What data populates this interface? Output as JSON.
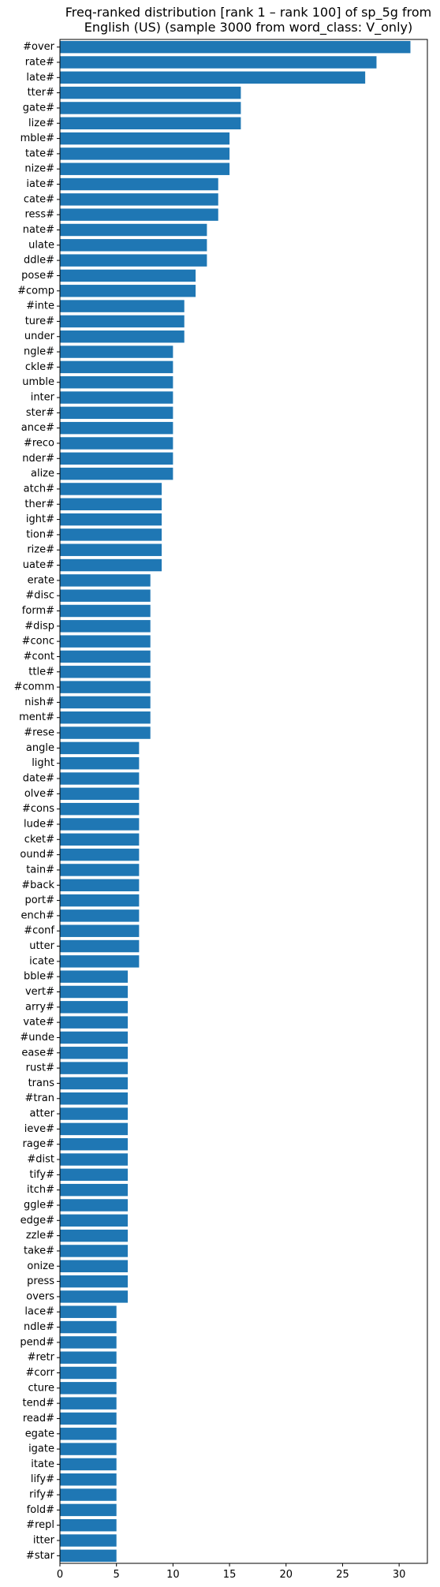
{
  "chart_data": {
    "type": "bar",
    "orientation": "horizontal",
    "title_lines": [
      "Freq-ranked distribution [rank 1 – rank 100] of sp_5g from",
      "English (US) (sample 3000 from word_class: V_only)"
    ],
    "xlabel": "",
    "ylabel": "",
    "xlim": [
      0,
      32.5
    ],
    "x_ticks": [
      0,
      5,
      10,
      15,
      20,
      25,
      30
    ],
    "grid": false,
    "bar_color": "#1f77b4",
    "categories": [
      "#over",
      "rate#",
      "late#",
      "tter#",
      "gate#",
      "lize#",
      "mble#",
      "tate#",
      "nize#",
      "iate#",
      "cate#",
      "ress#",
      "nate#",
      "ulate",
      "ddle#",
      "pose#",
      "#comp",
      "#inte",
      "ture#",
      "under",
      "ngle#",
      "ckle#",
      "umble",
      "inter",
      "ster#",
      "ance#",
      "#reco",
      "nder#",
      "alize",
      "atch#",
      "ther#",
      "ight#",
      "tion#",
      "rize#",
      "uate#",
      "erate",
      "#disc",
      "form#",
      "#disp",
      "#conc",
      "#cont",
      "ttle#",
      "#comm",
      "nish#",
      "ment#",
      "#rese",
      "angle",
      "light",
      "date#",
      "olve#",
      "#cons",
      "lude#",
      "cket#",
      "ound#",
      "tain#",
      "#back",
      "port#",
      "ench#",
      "#conf",
      "utter",
      "icate",
      "bble#",
      "vert#",
      "arry#",
      "vate#",
      "#unde",
      "ease#",
      "rust#",
      "trans",
      "#tran",
      "atter",
      "ieve#",
      "rage#",
      "#dist",
      "tify#",
      "itch#",
      "ggle#",
      "edge#",
      "zzle#",
      "take#",
      "onize",
      "press",
      "overs",
      "lace#",
      "ndle#",
      "pend#",
      "#retr",
      "#corr",
      "cture",
      "tend#",
      "read#",
      "egate",
      "igate",
      "itate",
      "lify#",
      "rify#",
      "fold#",
      "#repl",
      "itter",
      "#star"
    ],
    "values": [
      31,
      28,
      27,
      16,
      16,
      16,
      15,
      15,
      15,
      14,
      14,
      14,
      13,
      13,
      13,
      12,
      12,
      11,
      11,
      11,
      10,
      10,
      10,
      10,
      10,
      10,
      10,
      10,
      10,
      9,
      9,
      9,
      9,
      9,
      9,
      8,
      8,
      8,
      8,
      8,
      8,
      8,
      8,
      8,
      8,
      8,
      7,
      7,
      7,
      7,
      7,
      7,
      7,
      7,
      7,
      7,
      7,
      7,
      7,
      7,
      7,
      6,
      6,
      6,
      6,
      6,
      6,
      6,
      6,
      6,
      6,
      6,
      6,
      6,
      6,
      6,
      6,
      6,
      6,
      6,
      6,
      6,
      6,
      5,
      5,
      5,
      5,
      5,
      5,
      5,
      5,
      5,
      5,
      5,
      5,
      5,
      5,
      5,
      5,
      5
    ]
  }
}
